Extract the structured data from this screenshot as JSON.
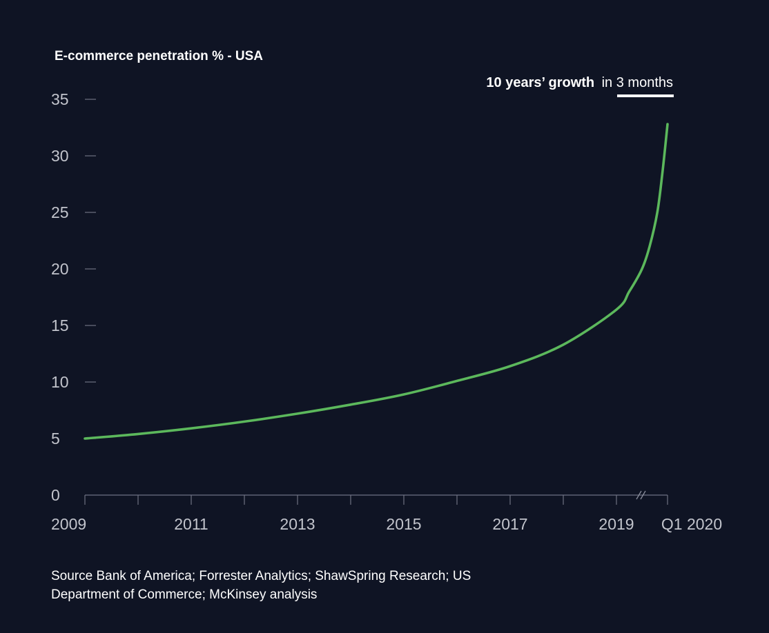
{
  "chart_data": {
    "type": "line",
    "title": "E-commerce penetration % - USA",
    "annotation": {
      "bold": "10 years’ growth",
      "normal": "in 3 months"
    },
    "x_ticks": [
      "2009",
      "2011",
      "2013",
      "2015",
      "2017",
      "2019",
      "Q1 2020"
    ],
    "y_ticks": [
      "0",
      "5",
      "10",
      "15",
      "20",
      "25",
      "30",
      "35"
    ],
    "ylim": [
      0,
      35
    ],
    "series": [
      {
        "color": "#5cb85c",
        "x": [
          2009.0,
          2010.0,
          2011.0,
          2012.0,
          2013.0,
          2014.0,
          2015.0,
          2016.0,
          2017.0,
          2018.0,
          2019.0,
          2019.25,
          2019.5,
          2019.65,
          2019.8,
          2019.9,
          2020.0
        ],
        "y": [
          5.0,
          5.4,
          5.9,
          6.5,
          7.2,
          8.0,
          8.9,
          10.1,
          11.4,
          13.3,
          16.4,
          18.0,
          20.0,
          22.0,
          25.0,
          28.5,
          32.8
        ]
      }
    ],
    "grid": false
  },
  "source": "Source Bank of America; Forrester Analytics; ShawSpring Research; US Department of Commerce; McKinsey analysis"
}
